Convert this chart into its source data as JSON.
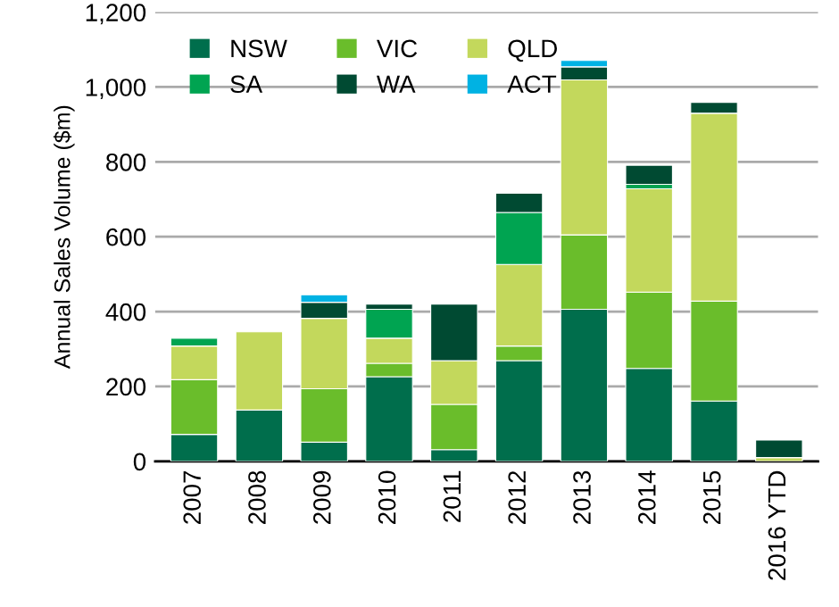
{
  "chart_data": {
    "type": "bar",
    "stacked": true,
    "ylabel": "Annual Sales Volume ($m)",
    "categories": [
      "2007",
      "2008",
      "2009",
      "2010",
      "2011",
      "2012",
      "2013",
      "2014",
      "2015",
      "2016 YTD"
    ],
    "series": [
      {
        "name": "NSW",
        "color": "#006e4c",
        "values": [
          72,
          137,
          51,
          226,
          31,
          269,
          406,
          248,
          161,
          null
        ]
      },
      {
        "name": "VIC",
        "color": "#6abd2b",
        "values": [
          146,
          null,
          143,
          36,
          121,
          39,
          199,
          204,
          267,
          null
        ]
      },
      {
        "name": "QLD",
        "color": "#c3d85c",
        "values": [
          90,
          209,
          188,
          67,
          117,
          218,
          414,
          276,
          502,
          10
        ]
      },
      {
        "name": "SA",
        "color": "#00a451",
        "values": [
          21,
          null,
          null,
          77,
          null,
          139,
          null,
          12,
          null,
          null
        ]
      },
      {
        "name": "WA",
        "color": "#004a32",
        "values": [
          null,
          null,
          43,
          14,
          151,
          51,
          35,
          51,
          29,
          47
        ]
      },
      {
        "name": "ACT",
        "color": "#00b2e3",
        "values": [
          null,
          null,
          20,
          null,
          null,
          null,
          17,
          null,
          null,
          null
        ]
      }
    ],
    "ylim": [
      0,
      1200
    ],
    "yticks": [
      0,
      200,
      400,
      600,
      800,
      {
        "value": 1000,
        "label": "1,000"
      },
      {
        "value": 1200,
        "label": "1,200"
      }
    ],
    "grid": "y",
    "legend": "top"
  }
}
